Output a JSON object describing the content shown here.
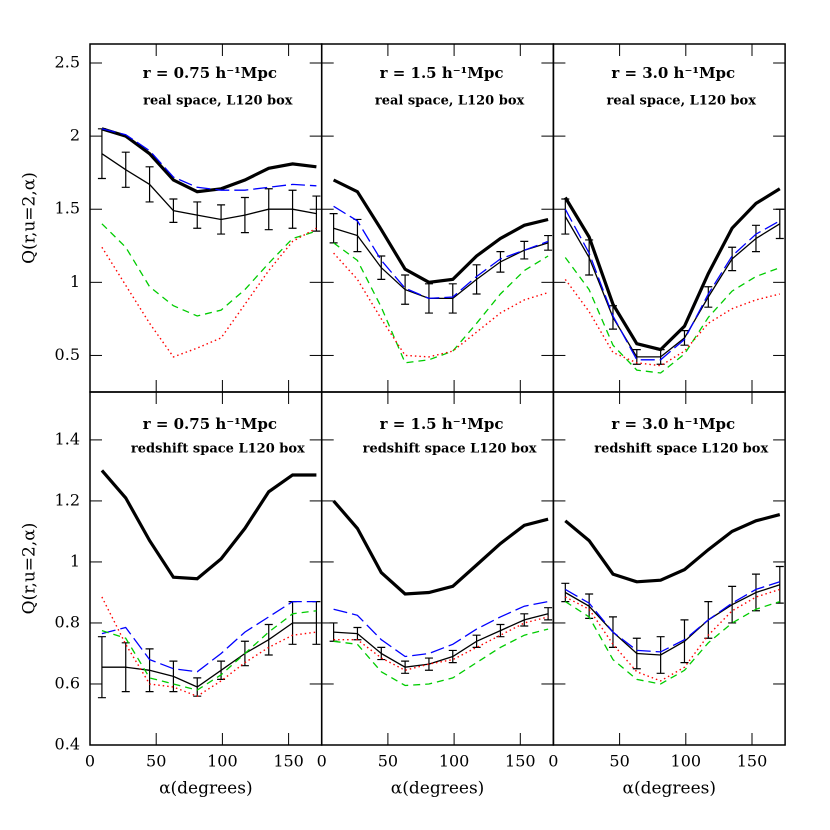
{
  "chart_data": [
    {
      "type": "line",
      "title": "r = 0.75 h⁻¹Mpc",
      "subtitle": "real space, L120 box",
      "ylabel": "Q(r,u=2,α)",
      "x": [
        9,
        27,
        45,
        63,
        81,
        99,
        117,
        135,
        153,
        171
      ],
      "xlim": [
        0,
        175
      ],
      "xticks": [
        0,
        50,
        100,
        150
      ],
      "xtick_labels": false,
      "ylim": [
        0.25,
        2.63
      ],
      "yticks": [
        0.5,
        1,
        1.5,
        2,
        2.5
      ],
      "ytick_labels": true,
      "series": [
        {
          "color": "#000000",
          "style": "thick",
          "values": [
            2.05,
            2.0,
            1.88,
            1.7,
            1.62,
            1.64,
            1.7,
            1.78,
            1.81,
            1.79
          ]
        },
        {
          "color": "#000000",
          "style": "solid",
          "values": [
            1.88,
            1.77,
            1.67,
            1.49,
            1.46,
            1.43,
            1.46,
            1.5,
            1.5,
            1.47
          ],
          "errors": [
            0.17,
            0.12,
            0.12,
            0.08,
            0.09,
            0.1,
            0.12,
            0.14,
            0.13,
            0.12
          ]
        },
        {
          "color": "#0000ff",
          "style": "long-dash",
          "values": [
            2.05,
            2.01,
            1.9,
            1.72,
            1.65,
            1.63,
            1.63,
            1.65,
            1.67,
            1.66
          ]
        },
        {
          "color": "#00cc00",
          "style": "dash",
          "values": [
            1.4,
            1.24,
            0.97,
            0.84,
            0.77,
            0.81,
            0.95,
            1.13,
            1.3,
            1.35
          ]
        },
        {
          "color": "#ff0000",
          "style": "dotted",
          "values": [
            1.24,
            0.98,
            0.72,
            0.49,
            0.55,
            0.62,
            0.85,
            1.08,
            1.28,
            1.37
          ]
        }
      ]
    },
    {
      "type": "line",
      "title": "r = 1.5 h⁻¹Mpc",
      "subtitle": "real space, L120 box",
      "x": [
        9,
        27,
        45,
        63,
        81,
        99,
        117,
        135,
        153,
        171
      ],
      "xlim": [
        0,
        175
      ],
      "xticks": [
        0,
        50,
        100,
        150
      ],
      "xtick_labels": false,
      "ylim": [
        0.25,
        2.63
      ],
      "yticks": [
        0.5,
        1,
        1.5,
        2,
        2.5
      ],
      "ytick_labels": false,
      "series": [
        {
          "color": "#000000",
          "style": "thick",
          "values": [
            1.7,
            1.62,
            1.36,
            1.09,
            1.0,
            1.02,
            1.18,
            1.3,
            1.39,
            1.43
          ]
        },
        {
          "color": "#000000",
          "style": "solid",
          "values": [
            1.37,
            1.32,
            1.1,
            0.95,
            0.89,
            0.89,
            1.02,
            1.14,
            1.22,
            1.27
          ],
          "errors": [
            0.1,
            0.11,
            0.08,
            0.1,
            0.1,
            0.1,
            0.1,
            0.07,
            0.06,
            0.05
          ]
        },
        {
          "color": "#0000ff",
          "style": "long-dash",
          "values": [
            1.52,
            1.42,
            1.15,
            0.96,
            0.89,
            0.9,
            1.04,
            1.16,
            1.22,
            1.28
          ]
        },
        {
          "color": "#00cc00",
          "style": "dash",
          "values": [
            1.27,
            1.15,
            0.83,
            0.45,
            0.47,
            0.53,
            0.72,
            0.92,
            1.08,
            1.18
          ]
        },
        {
          "color": "#ff0000",
          "style": "dotted",
          "values": [
            1.2,
            1.02,
            0.75,
            0.5,
            0.49,
            0.53,
            0.66,
            0.79,
            0.88,
            0.93
          ]
        }
      ]
    },
    {
      "type": "line",
      "title": "r = 3.0 h⁻¹Mpc",
      "subtitle": "real space, L120 box",
      "x": [
        9,
        27,
        45,
        63,
        81,
        99,
        117,
        135,
        153,
        171
      ],
      "xlim": [
        0,
        175
      ],
      "xticks": [
        0,
        50,
        100,
        150
      ],
      "xtick_labels": false,
      "ylim": [
        0.25,
        2.63
      ],
      "yticks": [
        0.5,
        1,
        1.5,
        2,
        2.5
      ],
      "ytick_labels": false,
      "series": [
        {
          "color": "#000000",
          "style": "thick",
          "values": [
            1.58,
            1.31,
            0.85,
            0.58,
            0.54,
            0.7,
            1.06,
            1.37,
            1.54,
            1.64
          ]
        },
        {
          "color": "#000000",
          "style": "solid",
          "values": [
            1.45,
            1.17,
            0.76,
            0.49,
            0.49,
            0.62,
            0.9,
            1.16,
            1.3,
            1.4
          ],
          "errors": [
            0.12,
            0.12,
            0.08,
            0.05,
            0.05,
            0.05,
            0.07,
            0.08,
            0.09,
            0.1
          ]
        },
        {
          "color": "#0000ff",
          "style": "long-dash",
          "values": [
            1.5,
            1.2,
            0.77,
            0.47,
            0.47,
            0.61,
            0.92,
            1.18,
            1.33,
            1.42
          ]
        },
        {
          "color": "#00cc00",
          "style": "dash",
          "values": [
            1.17,
            0.95,
            0.57,
            0.4,
            0.38,
            0.51,
            0.76,
            0.94,
            1.04,
            1.1
          ]
        },
        {
          "color": "#ff0000",
          "style": "dotted",
          "values": [
            1.02,
            0.8,
            0.52,
            0.45,
            0.43,
            0.53,
            0.72,
            0.82,
            0.88,
            0.92
          ]
        }
      ]
    },
    {
      "type": "line",
      "title": "r = 0.75 h⁻¹Mpc",
      "subtitle": "redshift space L120 box",
      "ylabel": "Q(r,u=2,α)",
      "xlabel": "α(degrees)",
      "x": [
        9,
        27,
        45,
        63,
        81,
        99,
        117,
        135,
        153,
        171
      ],
      "xlim": [
        0,
        175
      ],
      "xticks": [
        0,
        50,
        100,
        150
      ],
      "xtick_labels": true,
      "ylim": [
        0.4,
        1.557
      ],
      "yticks": [
        0.4,
        0.6,
        0.8,
        1,
        1.2,
        1.4
      ],
      "ytick_labels": true,
      "series": [
        {
          "color": "#000000",
          "style": "thick",
          "values": [
            1.3,
            1.21,
            1.07,
            0.95,
            0.945,
            1.01,
            1.11,
            1.23,
            1.285,
            1.285
          ]
        },
        {
          "color": "#000000",
          "style": "solid",
          "values": [
            0.655,
            0.655,
            0.645,
            0.625,
            0.59,
            0.645,
            0.7,
            0.745,
            0.8,
            0.8
          ],
          "errors": [
            0.1,
            0.08,
            0.07,
            0.05,
            0.03,
            0.03,
            0.04,
            0.05,
            0.07,
            0.07
          ]
        },
        {
          "color": "#0000ff",
          "style": "long-dash",
          "values": [
            0.765,
            0.785,
            0.68,
            0.65,
            0.64,
            0.7,
            0.77,
            0.82,
            0.87,
            0.87
          ]
        },
        {
          "color": "#00cc00",
          "style": "dash",
          "values": [
            0.775,
            0.75,
            0.62,
            0.6,
            0.58,
            0.63,
            0.7,
            0.77,
            0.83,
            0.84
          ]
        },
        {
          "color": "#ff0000",
          "style": "dotted",
          "values": [
            0.885,
            0.73,
            0.6,
            0.59,
            0.56,
            0.61,
            0.67,
            0.72,
            0.76,
            0.77
          ]
        }
      ]
    },
    {
      "type": "line",
      "title": "r = 1.5 h⁻¹Mpc",
      "subtitle": "redshift space L120 box",
      "xlabel": "α(degrees)",
      "x": [
        9,
        27,
        45,
        63,
        81,
        99,
        117,
        135,
        153,
        171
      ],
      "xlim": [
        0,
        175
      ],
      "xticks": [
        0,
        50,
        100,
        150
      ],
      "xtick_labels": true,
      "ylim": [
        0.4,
        1.557
      ],
      "yticks": [
        0.4,
        0.6,
        0.8,
        1,
        1.2,
        1.4
      ],
      "ytick_labels": false,
      "series": [
        {
          "color": "#000000",
          "style": "thick",
          "values": [
            1.2,
            1.11,
            0.965,
            0.895,
            0.9,
            0.92,
            0.99,
            1.06,
            1.12,
            1.14
          ]
        },
        {
          "color": "#000000",
          "style": "solid",
          "values": [
            0.77,
            0.765,
            0.7,
            0.655,
            0.665,
            0.69,
            0.74,
            0.775,
            0.81,
            0.83
          ],
          "errors": [
            0.03,
            0.02,
            0.02,
            0.02,
            0.02,
            0.02,
            0.02,
            0.02,
            0.02,
            0.02
          ]
        },
        {
          "color": "#0000ff",
          "style": "long-dash",
          "values": [
            0.845,
            0.825,
            0.745,
            0.69,
            0.7,
            0.73,
            0.78,
            0.82,
            0.855,
            0.87
          ]
        },
        {
          "color": "#00cc00",
          "style": "dash",
          "values": [
            0.74,
            0.73,
            0.64,
            0.595,
            0.6,
            0.62,
            0.67,
            0.72,
            0.76,
            0.78
          ]
        },
        {
          "color": "#ff0000",
          "style": "dotted",
          "values": [
            0.745,
            0.745,
            0.685,
            0.645,
            0.665,
            0.68,
            0.72,
            0.76,
            0.8,
            0.82
          ]
        }
      ]
    },
    {
      "type": "line",
      "title": "r = 3.0 h⁻¹Mpc",
      "subtitle": "redshift space L120 box",
      "xlabel": "α(degrees)",
      "x": [
        9,
        27,
        45,
        63,
        81,
        99,
        117,
        135,
        153,
        171
      ],
      "xlim": [
        0,
        175
      ],
      "xticks": [
        0,
        50,
        100,
        150
      ],
      "xtick_labels": true,
      "ylim": [
        0.4,
        1.557
      ],
      "yticks": [
        0.4,
        0.6,
        0.8,
        1,
        1.2,
        1.4
      ],
      "ytick_labels": false,
      "series": [
        {
          "color": "#000000",
          "style": "thick",
          "values": [
            1.135,
            1.07,
            0.96,
            0.935,
            0.94,
            0.975,
            1.04,
            1.1,
            1.135,
            1.155
          ]
        },
        {
          "color": "#000000",
          "style": "solid",
          "values": [
            0.9,
            0.855,
            0.77,
            0.7,
            0.695,
            0.74,
            0.81,
            0.86,
            0.9,
            0.925
          ],
          "errors": [
            0.03,
            0.04,
            0.05,
            0.05,
            0.06,
            0.07,
            0.06,
            0.06,
            0.06,
            0.06
          ]
        },
        {
          "color": "#0000ff",
          "style": "long-dash",
          "values": [
            0.91,
            0.865,
            0.77,
            0.71,
            0.705,
            0.745,
            0.81,
            0.865,
            0.91,
            0.935
          ]
        },
        {
          "color": "#00cc00",
          "style": "dash",
          "values": [
            0.87,
            0.82,
            0.68,
            0.615,
            0.6,
            0.645,
            0.735,
            0.8,
            0.845,
            0.87
          ]
        },
        {
          "color": "#ff0000",
          "style": "dotted",
          "values": [
            0.885,
            0.845,
            0.73,
            0.64,
            0.61,
            0.655,
            0.76,
            0.84,
            0.885,
            0.91
          ]
        }
      ]
    }
  ]
}
